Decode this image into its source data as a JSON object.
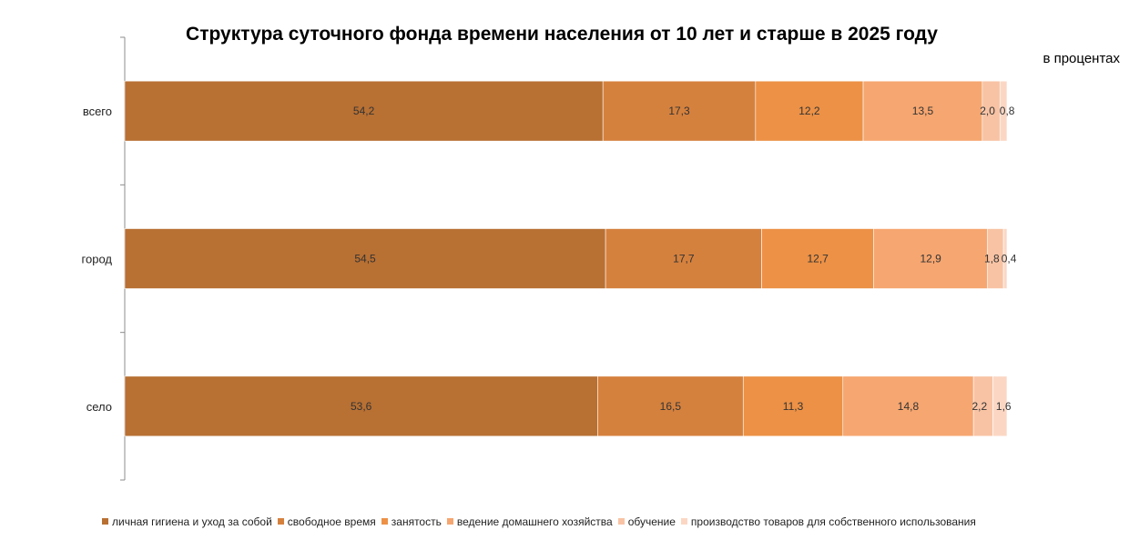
{
  "chart_data": {
    "type": "bar",
    "orientation": "horizontal",
    "stacked": true,
    "title": "Структура суточного фонда времени населения от 10 лет и старше в 2025 году",
    "unit_label": "в процентах",
    "categories": [
      "всего",
      "город",
      "село"
    ],
    "series": [
      {
        "name": "личная гигиена и уход за собой",
        "color": "#b87033",
        "values": [
          54.2,
          54.5,
          53.6
        ],
        "labels": [
          "54,2",
          "54,5",
          "53,6"
        ]
      },
      {
        "name": "свободное время",
        "color": "#d5813e",
        "values": [
          17.3,
          17.7,
          16.5
        ],
        "labels": [
          "17,3",
          "17,7",
          "16,5"
        ]
      },
      {
        "name": "занятость",
        "color": "#ec9146",
        "values": [
          12.2,
          12.7,
          11.3
        ],
        "labels": [
          "12,2",
          "12,7",
          "11,3"
        ]
      },
      {
        "name": "ведение домашнего хозяйства",
        "color": "#f6a670",
        "values": [
          13.5,
          12.9,
          14.8
        ],
        "labels": [
          "13,5",
          "12,9",
          "14,8"
        ]
      },
      {
        "name": "обучение",
        "color": "#f8c3a4",
        "values": [
          2.0,
          1.8,
          2.2
        ],
        "labels": [
          "2,0",
          "1,8",
          "2,2"
        ]
      },
      {
        "name": "производство товаров для собственного использования",
        "color": "#fbd7c3",
        "values": [
          0.8,
          0.4,
          1.6
        ],
        "labels": [
          "0,8",
          "0,4",
          "1,6"
        ]
      }
    ],
    "xlim": [
      0,
      100
    ],
    "grid": false,
    "legend_position": "bottom"
  }
}
